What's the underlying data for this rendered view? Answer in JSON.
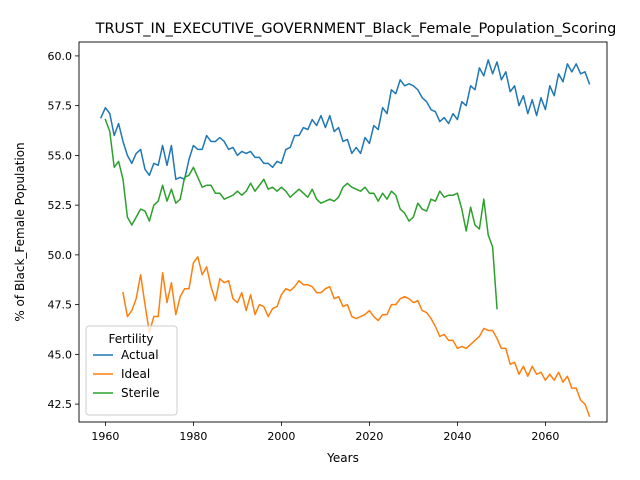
{
  "chart_data": {
    "type": "line",
    "title": "TRUST_IN_EXECUTIVE_GOVERNMENT_Black_Female_Population_Scoring",
    "xlabel": "Years",
    "ylabel": "% of Black_Female Population",
    "xlim": [
      1954,
      2074
    ],
    "ylim": [
      41.6,
      60.7
    ],
    "xticks": [
      1960,
      1980,
      2000,
      2020,
      2040,
      2060
    ],
    "yticks": [
      42.5,
      45.0,
      47.5,
      50.0,
      52.5,
      55.0,
      57.5,
      60.0
    ],
    "grid": false,
    "legend": {
      "title": "Fertility",
      "placement": "lower-left"
    },
    "series": [
      {
        "name": "Actual",
        "color": "#1f77b4",
        "x": [
          1959,
          1960,
          1961,
          1962,
          1963,
          1964,
          1965,
          1966,
          1967,
          1968,
          1969,
          1970,
          1971,
          1972,
          1973,
          1974,
          1975,
          1976,
          1977,
          1978,
          1979,
          1980,
          1981,
          1982,
          1983,
          1984,
          1985,
          1986,
          1987,
          1988,
          1989,
          1990,
          1991,
          1992,
          1993,
          1994,
          1995,
          1996,
          1997,
          1998,
          1999,
          2000,
          2001,
          2002,
          2003,
          2004,
          2005,
          2006,
          2007,
          2008,
          2009,
          2010,
          2011,
          2012,
          2013,
          2014,
          2015,
          2016,
          2017,
          2018,
          2019,
          2020,
          2021,
          2022,
          2023,
          2024,
          2025,
          2026,
          2027,
          2028,
          2029,
          2030,
          2031,
          2032,
          2033,
          2034,
          2035,
          2036,
          2037,
          2038,
          2039,
          2040,
          2041,
          2042,
          2043,
          2044,
          2045,
          2046,
          2047,
          2048,
          2049,
          2050,
          2051,
          2052,
          2053,
          2054,
          2055,
          2056,
          2057,
          2058,
          2059,
          2060,
          2061,
          2062,
          2063,
          2064,
          2065,
          2066,
          2067,
          2068,
          2069,
          2070
        ],
        "y": [
          56.9,
          57.4,
          57.1,
          56.0,
          56.6,
          55.7,
          55.0,
          54.6,
          55.1,
          55.3,
          54.3,
          54.0,
          54.6,
          54.5,
          55.5,
          54.5,
          55.5,
          53.8,
          53.9,
          53.8,
          54.8,
          55.5,
          55.3,
          55.3,
          56.0,
          55.7,
          55.7,
          55.9,
          55.7,
          55.3,
          55.4,
          55.0,
          55.2,
          55.1,
          55.2,
          54.9,
          54.9,
          54.6,
          54.6,
          54.4,
          54.7,
          54.6,
          55.3,
          55.4,
          56.0,
          56.0,
          56.4,
          56.3,
          56.8,
          56.5,
          57.0,
          56.4,
          57.0,
          56.2,
          56.4,
          55.7,
          55.8,
          55.1,
          55.4,
          55.1,
          55.9,
          55.6,
          56.5,
          56.3,
          57.4,
          57.1,
          58.3,
          58.1,
          58.8,
          58.5,
          58.6,
          58.5,
          58.3,
          57.9,
          57.7,
          57.3,
          57.2,
          56.7,
          56.9,
          56.6,
          57.1,
          56.8,
          57.7,
          57.5,
          58.5,
          58.3,
          59.4,
          59.0,
          59.8,
          59.1,
          59.7,
          58.8,
          59.2,
          58.2,
          58.5,
          57.5,
          58.0,
          57.1,
          57.8,
          57.0,
          57.9,
          57.3,
          58.5,
          58.0,
          59.1,
          58.7,
          59.6,
          59.2,
          59.6,
          59.1,
          59.2,
          58.6
        ]
      },
      {
        "name": "Ideal",
        "color": "#ff7f0e",
        "x": [
          1964,
          1965,
          1966,
          1967,
          1968,
          1969,
          1970,
          1971,
          1972,
          1973,
          1974,
          1975,
          1976,
          1977,
          1978,
          1979,
          1980,
          1981,
          1982,
          1983,
          1984,
          1985,
          1986,
          1987,
          1988,
          1989,
          1990,
          1991,
          1992,
          1993,
          1994,
          1995,
          1996,
          1997,
          1998,
          1999,
          2000,
          2001,
          2002,
          2003,
          2004,
          2005,
          2006,
          2007,
          2008,
          2009,
          2010,
          2011,
          2012,
          2013,
          2014,
          2015,
          2016,
          2017,
          2018,
          2019,
          2020,
          2021,
          2022,
          2023,
          2024,
          2025,
          2026,
          2027,
          2028,
          2029,
          2030,
          2031,
          2032,
          2033,
          2034,
          2035,
          2036,
          2037,
          2038,
          2039,
          2040,
          2041,
          2042,
          2043,
          2044,
          2045,
          2046,
          2047,
          2048,
          2049,
          2050,
          2051,
          2052,
          2053,
          2054,
          2055,
          2056,
          2057,
          2058,
          2059,
          2060,
          2061,
          2062,
          2063,
          2064,
          2065,
          2066,
          2067,
          2068,
          2069,
          2070
        ],
        "y": [
          48.1,
          46.9,
          47.2,
          47.8,
          49.0,
          47.5,
          46.1,
          46.9,
          46.9,
          49.1,
          47.6,
          48.6,
          47.0,
          47.9,
          48.3,
          48.3,
          49.6,
          49.9,
          49.0,
          49.4,
          48.4,
          47.7,
          48.8,
          48.6,
          48.7,
          47.8,
          47.6,
          48.1,
          47.2,
          48.0,
          47.0,
          47.5,
          47.4,
          46.9,
          47.3,
          47.4,
          48.0,
          48.3,
          48.2,
          48.4,
          48.7,
          48.5,
          48.5,
          48.4,
          48.1,
          48.1,
          48.3,
          48.4,
          47.8,
          47.9,
          47.4,
          47.5,
          46.9,
          46.8,
          46.9,
          47.0,
          47.2,
          46.9,
          46.7,
          47.0,
          47.0,
          47.5,
          47.5,
          47.8,
          47.9,
          47.8,
          47.6,
          47.7,
          47.2,
          47.1,
          46.8,
          46.4,
          45.9,
          46.0,
          45.7,
          45.7,
          45.3,
          45.4,
          45.3,
          45.5,
          45.7,
          45.9,
          46.3,
          46.2,
          46.2,
          45.8,
          45.3,
          45.3,
          44.5,
          44.6,
          44.0,
          44.4,
          43.9,
          44.4,
          44.0,
          44.1,
          43.7,
          44.0,
          43.7,
          44.1,
          43.6,
          43.9,
          43.3,
          43.3,
          42.7,
          42.5,
          41.9
        ]
      },
      {
        "name": "Sterile",
        "color": "#2ca02c",
        "x": [
          1960,
          1961,
          1962,
          1963,
          1964,
          1965,
          1966,
          1967,
          1968,
          1969,
          1970,
          1971,
          1972,
          1973,
          1974,
          1975,
          1976,
          1977,
          1978,
          1979,
          1980,
          1981,
          1982,
          1983,
          1984,
          1985,
          1986,
          1987,
          1988,
          1989,
          1990,
          1991,
          1992,
          1993,
          1994,
          1995,
          1996,
          1997,
          1998,
          1999,
          2000,
          2001,
          2002,
          2003,
          2004,
          2005,
          2006,
          2007,
          2008,
          2009,
          2010,
          2011,
          2012,
          2013,
          2014,
          2015,
          2016,
          2017,
          2018,
          2019,
          2020,
          2021,
          2022,
          2023,
          2024,
          2025,
          2026,
          2027,
          2028,
          2029,
          2030,
          2031,
          2032,
          2033,
          2034,
          2035,
          2036,
          2037,
          2038,
          2039,
          2040,
          2041,
          2042,
          2043,
          2044,
          2045,
          2046,
          2047,
          2048,
          2049
        ],
        "y": [
          56.8,
          56.2,
          54.4,
          54.7,
          53.8,
          51.9,
          51.5,
          51.9,
          52.3,
          52.2,
          51.7,
          52.5,
          52.7,
          53.5,
          52.7,
          53.3,
          52.6,
          52.8,
          53.9,
          54.0,
          54.4,
          53.9,
          53.4,
          53.5,
          53.5,
          53.1,
          53.1,
          52.8,
          52.9,
          53.0,
          53.2,
          53.0,
          53.2,
          53.6,
          53.2,
          53.5,
          53.8,
          53.3,
          53.4,
          53.2,
          53.4,
          53.2,
          52.9,
          53.1,
          53.3,
          53.1,
          52.9,
          53.3,
          52.8,
          52.6,
          52.7,
          52.8,
          52.7,
          52.9,
          53.4,
          53.6,
          53.4,
          53.3,
          53.2,
          53.4,
          53.1,
          53.1,
          52.7,
          53.1,
          52.8,
          53.2,
          53.0,
          52.3,
          52.1,
          51.7,
          51.9,
          52.6,
          52.3,
          52.2,
          52.8,
          52.7,
          53.2,
          52.9,
          53.0,
          53.0,
          53.1,
          52.3,
          51.2,
          52.4,
          51.5,
          51.3,
          52.8,
          51.0,
          50.4,
          47.3
        ]
      }
    ]
  }
}
